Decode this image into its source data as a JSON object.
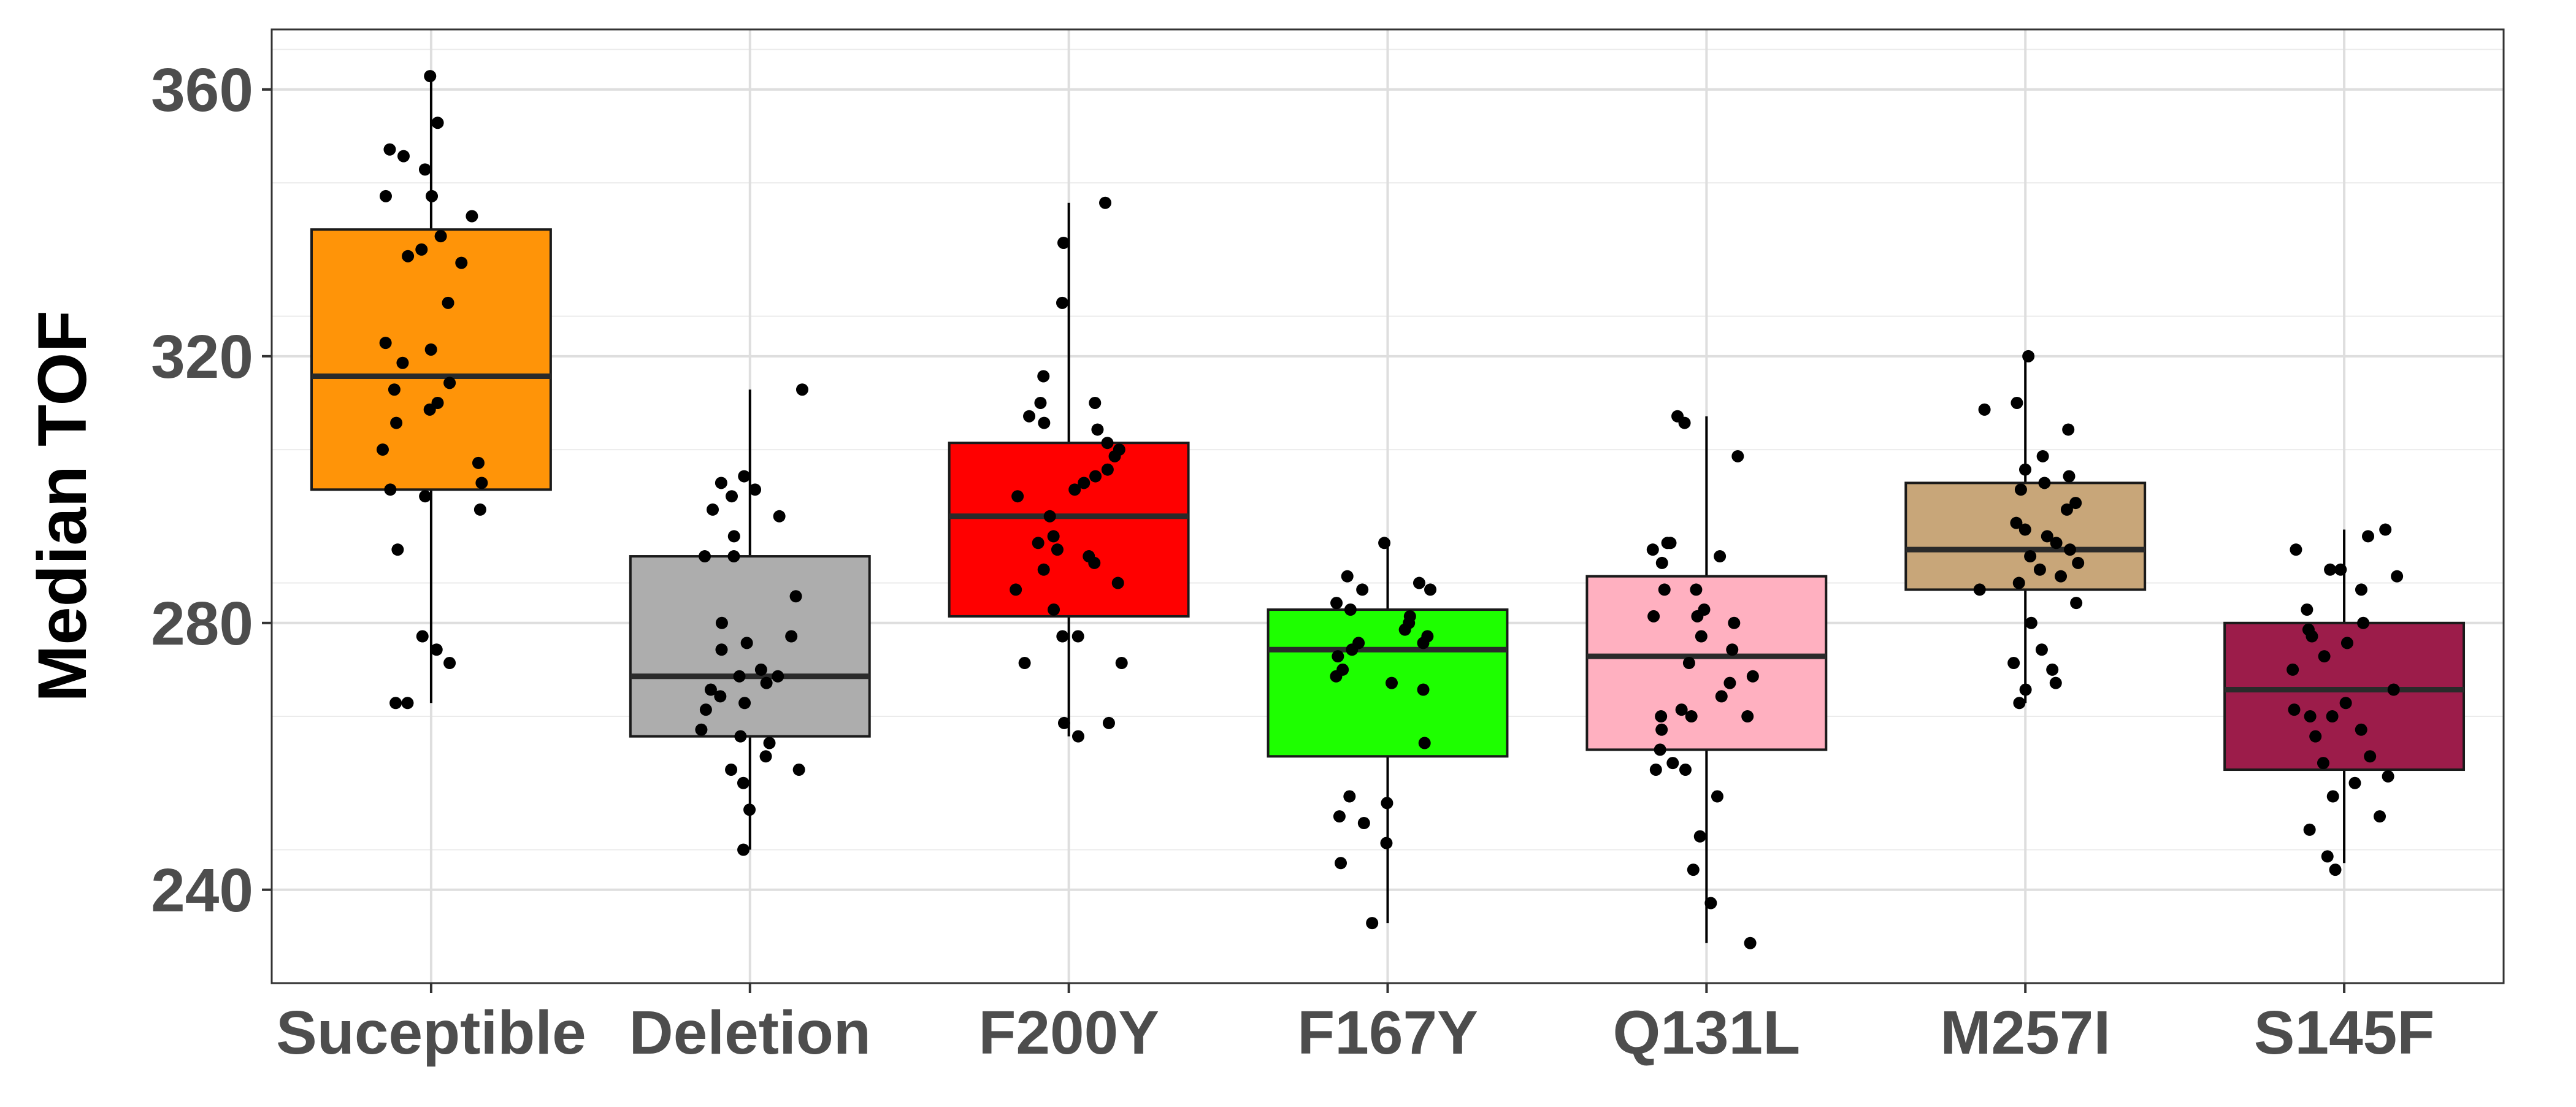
{
  "chart_data": {
    "type": "boxplot",
    "title": "",
    "xlabel": "",
    "ylabel": "Median TOF",
    "ylim": [
      226,
      369
    ],
    "yticks": [
      240,
      280,
      320,
      360
    ],
    "grid": true,
    "legend": "none",
    "categories": [
      "Suceptible",
      "Deletion",
      "F200Y",
      "F167Y",
      "Q131L",
      "M257I",
      "S145F"
    ],
    "series": [
      {
        "category": "Suceptible",
        "color": "#FF9408",
        "stats": {
          "lower_whisker": 268,
          "q1": 300,
          "median": 317,
          "q3": 339,
          "upper_whisker": 362
        },
        "points": [
          362,
          355,
          351,
          350,
          348,
          344,
          344,
          341,
          338,
          336,
          335,
          334,
          328,
          322,
          321,
          319,
          316,
          315,
          313,
          312,
          310,
          306,
          304,
          301,
          300,
          299,
          297,
          291,
          278,
          276,
          274,
          268,
          268
        ]
      },
      {
        "category": "Deletion",
        "color": "#ADADAD",
        "stats": {
          "lower_whisker": 246,
          "q1": 263,
          "median": 272,
          "q3": 290,
          "upper_whisker": 315
        },
        "points": [
          315,
          302,
          301,
          300,
          299,
          297,
          296,
          293,
          290,
          290,
          284,
          280,
          278,
          277,
          276,
          273,
          272,
          272,
          271,
          270,
          269,
          268,
          267,
          264,
          263,
          262,
          260,
          258,
          258,
          256,
          252,
          246
        ]
      },
      {
        "category": "F200Y",
        "color": "#FF0000",
        "stats": {
          "lower_whisker": 263,
          "q1": 281,
          "median": 296,
          "q3": 307,
          "upper_whisker": 343
        },
        "points": [
          343,
          337,
          328,
          317,
          313,
          313,
          311,
          310,
          309,
          307,
          306,
          305,
          303,
          302,
          301,
          300,
          299,
          296,
          293,
          292,
          291,
          290,
          289,
          288,
          286,
          285,
          282,
          278,
          278,
          274,
          274,
          265,
          265,
          263
        ]
      },
      {
        "category": "F167Y",
        "color": "#1EFF00",
        "stats": {
          "lower_whisker": 235,
          "q1": 260,
          "median": 276,
          "q3": 282,
          "upper_whisker": 292
        },
        "points": [
          292,
          287,
          286,
          285,
          285,
          283,
          282,
          281,
          280,
          279,
          278,
          277,
          277,
          276,
          275,
          273,
          272,
          271,
          270,
          262,
          254,
          253,
          251,
          250,
          247,
          244,
          235
        ]
      },
      {
        "category": "Q131L",
        "color": "#FFB0C0",
        "stats": {
          "lower_whisker": 232,
          "q1": 261,
          "median": 275,
          "q3": 287,
          "upper_whisker": 311
        },
        "points": [
          311,
          310,
          305,
          292,
          292,
          291,
          290,
          289,
          285,
          285,
          282,
          281,
          281,
          280,
          278,
          276,
          274,
          272,
          271,
          269,
          267,
          266,
          266,
          266,
          264,
          261,
          259,
          258,
          258,
          254,
          248,
          243,
          238,
          232
        ]
      },
      {
        "category": "M257I",
        "color": "#C8A679",
        "stats": {
          "lower_whisker": 268,
          "q1": 285,
          "median": 291,
          "q3": 301,
          "upper_whisker": 320
        },
        "points": [
          320,
          313,
          312,
          309,
          305,
          303,
          302,
          301,
          300,
          298,
          297,
          295,
          294,
          293,
          292,
          291,
          290,
          289,
          288,
          287,
          286,
          285,
          283,
          280,
          276,
          274,
          273,
          271,
          270,
          268
        ]
      },
      {
        "category": "S145F",
        "color": "#9C1C4A",
        "stats": {
          "lower_whisker": 244,
          "q1": 258,
          "median": 270,
          "q3": 280,
          "upper_whisker": 294
        },
        "points": [
          294,
          293,
          291,
          288,
          288,
          287,
          285,
          282,
          280,
          279,
          278,
          277,
          275,
          273,
          270,
          268,
          267,
          266,
          266,
          264,
          263,
          260,
          259,
          257,
          256,
          254,
          251,
          249,
          245,
          243
        ]
      }
    ]
  }
}
